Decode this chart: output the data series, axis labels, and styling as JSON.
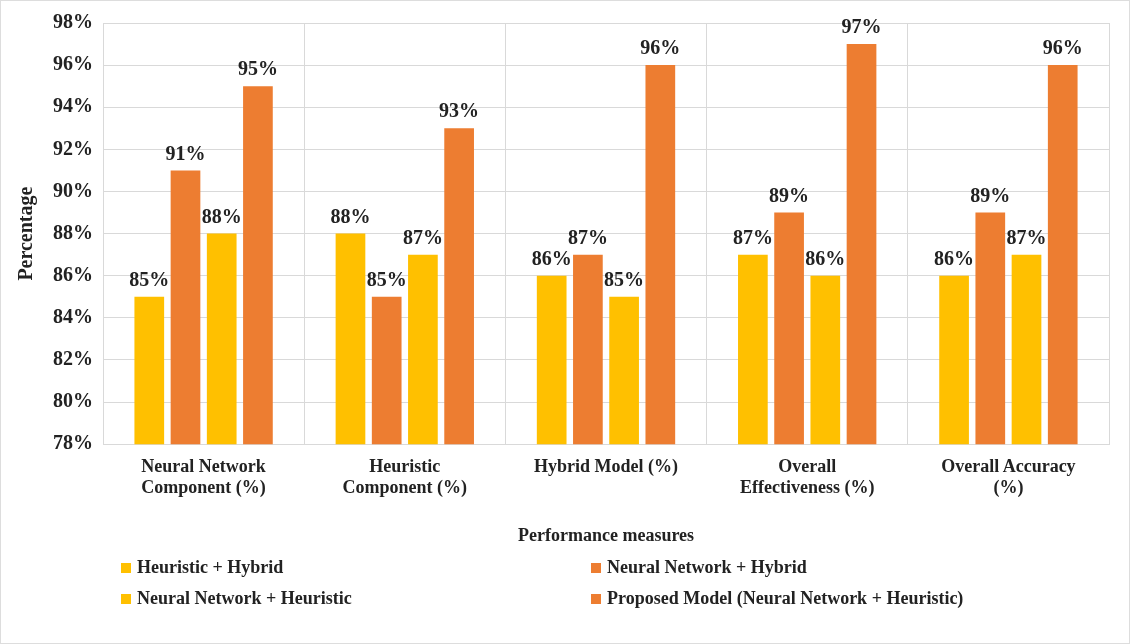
{
  "chart_data": {
    "type": "bar",
    "xlabel": "Performance measures",
    "ylabel": "Percentage",
    "categories": [
      "Neural Network Component (%)",
      "Heuristic Component (%)",
      "Hybrid Model (%)",
      "Overall Effectiveness (%)",
      "Overall Accuracy (%)"
    ],
    "series": [
      {
        "name": "Heuristic + Hybrid",
        "color": "#ffc000",
        "values": [
          85,
          88,
          86,
          87,
          86
        ],
        "value_labels": [
          "85%",
          "88%",
          "86%",
          "87%",
          "86%"
        ]
      },
      {
        "name": "Neural Network + Hybrid",
        "color": "#ed7d31",
        "values": [
          91,
          85,
          87,
          89,
          89
        ],
        "value_labels": [
          "91%",
          "85%",
          "87%",
          "89%",
          "89%"
        ]
      },
      {
        "name": "Neural Network + Heuristic",
        "color": "#ffc000",
        "values": [
          88,
          87,
          85,
          86,
          87
        ],
        "value_labels": [
          "88%",
          "87%",
          "85%",
          "86%",
          "87%"
        ]
      },
      {
        "name": "Proposed Model (Neural Network + Heuristic)",
        "color": "#ed7d31",
        "values": [
          95,
          93,
          96,
          97,
          96
        ],
        "value_labels": [
          "95%",
          "93%",
          "96%",
          "97%",
          "96%"
        ]
      }
    ],
    "ylim": [
      78,
      98
    ],
    "yticks": [
      {
        "value": 78,
        "label": "78%"
      },
      {
        "value": 80,
        "label": "80%"
      },
      {
        "value": 82,
        "label": "82%"
      },
      {
        "value": 84,
        "label": "84%"
      },
      {
        "value": 86,
        "label": "86%"
      },
      {
        "value": 88,
        "label": "88%"
      },
      {
        "value": 90,
        "label": "90%"
      },
      {
        "value": 92,
        "label": "92%"
      },
      {
        "value": 94,
        "label": "94%"
      },
      {
        "value": 96,
        "label": "96%"
      },
      {
        "value": 98,
        "label": "98%"
      }
    ],
    "grid": true,
    "legend": "bottom"
  }
}
